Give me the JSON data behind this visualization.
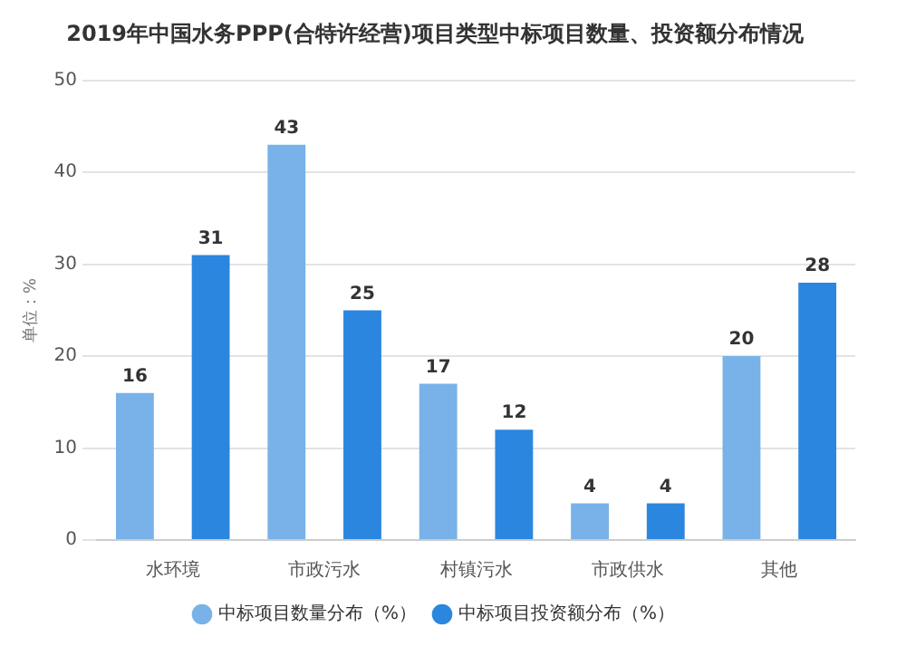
{
  "chart_data": {
    "type": "bar",
    "title": "2019年中国水务PPP(合特许经营)项目类型中标项目数量、投资额分布情况",
    "ylabel": "单位：%",
    "categories": [
      "水环境",
      "市政污水",
      "村镇污水",
      "市政供水",
      "其他"
    ],
    "series": [
      {
        "name": "中标项目数量分布（%）",
        "color": "#78b2e8",
        "values": [
          16,
          43,
          17,
          4,
          20
        ]
      },
      {
        "name": "中标项目投资额分布（%）",
        "color": "#2b86df",
        "values": [
          31,
          25,
          12,
          4,
          28
        ]
      }
    ],
    "ylim": [
      0,
      50
    ],
    "yticks": [
      0,
      10,
      20,
      30,
      40,
      50
    ],
    "grid": "y",
    "legend": "bottom",
    "data_labels": true
  }
}
